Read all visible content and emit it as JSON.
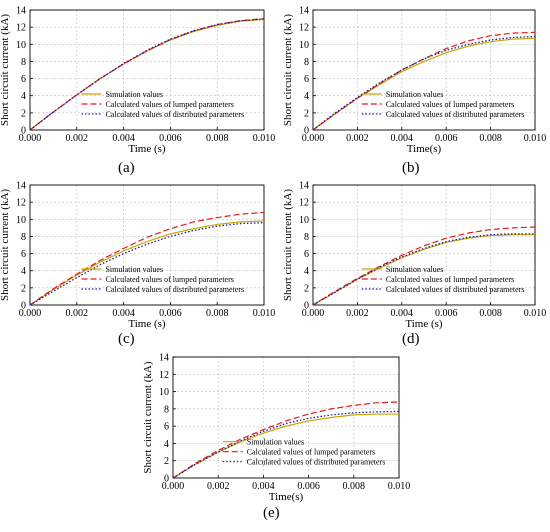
{
  "chart_data": [
    {
      "type": "line",
      "panel_label": "(a)",
      "xlabel": "Time (s)",
      "ylabel": "Short circuit current (kA)",
      "xlim": [
        0,
        0.01
      ],
      "ylim": [
        0,
        14
      ],
      "xticks": [
        "0.000",
        "0.002",
        "0.004",
        "0.006",
        "0.008",
        "0.010"
      ],
      "yticks": [
        "0",
        "2",
        "4",
        "6",
        "8",
        "10",
        "12",
        "14"
      ],
      "grid": true,
      "legend_position": "lower-right",
      "x": [
        0,
        0.001,
        0.002,
        0.003,
        0.004,
        0.005,
        0.006,
        0.007,
        0.008,
        0.009,
        0.01
      ],
      "series": [
        {
          "name": "Simulation values",
          "style": "solid",
          "color": "#c8a800",
          "values": [
            0,
            2.1,
            4.1,
            6.0,
            7.7,
            9.2,
            10.5,
            11.5,
            12.2,
            12.7,
            12.9
          ]
        },
        {
          "name": "Calculated values of lumped parameters",
          "style": "dashed",
          "color": "#e8191a",
          "values": [
            0,
            2.1,
            4.1,
            6.0,
            7.7,
            9.25,
            10.55,
            11.55,
            12.3,
            12.75,
            13.0
          ]
        },
        {
          "name": "Calculated values of distributed parameters",
          "style": "dotted",
          "color": "#1a1aa0",
          "values": [
            0,
            2.1,
            4.1,
            6.0,
            7.75,
            9.3,
            10.6,
            11.6,
            12.3,
            12.75,
            12.95
          ]
        }
      ]
    },
    {
      "type": "line",
      "panel_label": "(b)",
      "xlabel": "Time(s)",
      "ylabel": "Short circuit current (kA)",
      "xlim": [
        0,
        0.01
      ],
      "ylim": [
        0,
        14
      ],
      "xticks": [
        "0.000",
        "0.002",
        "0.004",
        "0.006",
        "0.008",
        "0.010"
      ],
      "yticks": [
        "0",
        "2",
        "4",
        "6",
        "8",
        "10",
        "12",
        "14"
      ],
      "grid": true,
      "legend_position": "lower-right",
      "x": [
        0,
        0.001,
        0.002,
        0.003,
        0.004,
        0.005,
        0.006,
        0.007,
        0.008,
        0.009,
        0.01
      ],
      "series": [
        {
          "name": "Simulation values",
          "style": "solid",
          "color": "#c8a800",
          "values": [
            0,
            1.9,
            3.7,
            5.3,
            6.8,
            8.0,
            9.0,
            9.8,
            10.3,
            10.6,
            10.7
          ]
        },
        {
          "name": "Calculated values of lumped parameters",
          "style": "dashed",
          "color": "#e8191a",
          "values": [
            0,
            1.9,
            3.7,
            5.4,
            7.0,
            8.3,
            9.5,
            10.4,
            11.0,
            11.3,
            11.4
          ]
        },
        {
          "name": "Calculated values of distributed parameters",
          "style": "dotted",
          "color": "#1a1aa0",
          "values": [
            0,
            2.0,
            3.8,
            5.5,
            7.0,
            8.3,
            9.3,
            10.0,
            10.5,
            10.8,
            10.9
          ]
        }
      ]
    },
    {
      "type": "line",
      "panel_label": "(c)",
      "xlabel": "Time (s)",
      "ylabel": "Short circuit current (kA)",
      "xlim": [
        0,
        0.01
      ],
      "ylim": [
        0,
        14
      ],
      "xticks": [
        "0.000",
        "0.002",
        "0.004",
        "0.006",
        "0.008",
        "0.010"
      ],
      "yticks": [
        "0",
        "2",
        "4",
        "6",
        "8",
        "10",
        "12",
        "14"
      ],
      "grid": true,
      "legend_position": "lower-right",
      "x": [
        0,
        0.001,
        0.002,
        0.003,
        0.004,
        0.005,
        0.006,
        0.007,
        0.008,
        0.009,
        0.01
      ],
      "series": [
        {
          "name": "Simulation values",
          "style": "solid",
          "color": "#c8a800",
          "values": [
            0,
            1.8,
            3.5,
            5.0,
            6.3,
            7.4,
            8.3,
            8.9,
            9.4,
            9.7,
            9.8
          ]
        },
        {
          "name": "Calculated values of lumped parameters",
          "style": "dashed",
          "color": "#e8191a",
          "values": [
            0,
            1.9,
            3.6,
            5.2,
            6.6,
            7.9,
            8.9,
            9.7,
            10.2,
            10.6,
            10.8
          ]
        },
        {
          "name": "Calculated values of distributed parameters",
          "style": "dotted",
          "color": "#1a1aa0",
          "values": [
            0,
            1.6,
            3.2,
            4.7,
            6.0,
            7.1,
            8.0,
            8.7,
            9.2,
            9.5,
            9.6
          ]
        }
      ]
    },
    {
      "type": "line",
      "panel_label": "(d)",
      "xlabel": "Time (s)",
      "ylabel": "Short circuit current (kA)",
      "xlim": [
        0,
        0.01
      ],
      "ylim": [
        0,
        14
      ],
      "xticks": [
        "0.000",
        "0.002",
        "0.004",
        "0.006",
        "0.008",
        "0.010"
      ],
      "yticks": [
        "0",
        "2",
        "4",
        "6",
        "8",
        "10",
        "12",
        "14"
      ],
      "grid": true,
      "legend_position": "lower-right",
      "x": [
        0,
        0.001,
        0.002,
        0.003,
        0.004,
        0.005,
        0.006,
        0.007,
        0.008,
        0.009,
        0.01
      ],
      "series": [
        {
          "name": "Simulation values",
          "style": "solid",
          "color": "#c8a800",
          "values": [
            0,
            1.5,
            3.0,
            4.3,
            5.5,
            6.5,
            7.3,
            7.8,
            8.1,
            8.2,
            8.2
          ]
        },
        {
          "name": "Calculated values of lumped parameters",
          "style": "dashed",
          "color": "#e8191a",
          "values": [
            0,
            1.6,
            3.1,
            4.5,
            5.8,
            6.9,
            7.8,
            8.4,
            8.8,
            9.0,
            9.1
          ]
        },
        {
          "name": "Calculated values of distributed parameters",
          "style": "dotted",
          "color": "#1a1aa0",
          "values": [
            0,
            1.5,
            3.0,
            4.4,
            5.6,
            6.6,
            7.4,
            7.9,
            8.2,
            8.3,
            8.3
          ]
        }
      ]
    },
    {
      "type": "line",
      "panel_label": "(e)",
      "xlabel": "Time(s)",
      "ylabel": "Short circuit current (kA)",
      "xlim": [
        0,
        0.01
      ],
      "ylim": [
        0,
        14
      ],
      "xticks": [
        "0.000",
        "0.002",
        "0.004",
        "0.006",
        "0.008",
        "0.010"
      ],
      "yticks": [
        "0",
        "2",
        "4",
        "6",
        "8",
        "10",
        "12",
        "14"
      ],
      "grid": true,
      "legend_position": "lower-right",
      "x": [
        0,
        0.001,
        0.002,
        0.003,
        0.004,
        0.005,
        0.006,
        0.007,
        0.008,
        0.009,
        0.01
      ],
      "series": [
        {
          "name": "Simulation values",
          "style": "solid",
          "color": "#c8a800",
          "values": [
            0,
            1.6,
            3.0,
            4.2,
            5.2,
            6.0,
            6.6,
            7.0,
            7.3,
            7.4,
            7.4
          ]
        },
        {
          "name": "Calculated values of lumped parameters",
          "style": "dashed",
          "color": "#e8191a",
          "values": [
            0,
            1.7,
            3.2,
            4.5,
            5.6,
            6.6,
            7.4,
            8.0,
            8.4,
            8.7,
            8.8
          ]
        },
        {
          "name": "Calculated values of distributed parameters",
          "style": "dotted",
          "color": "#1a1aa0",
          "values": [
            0,
            1.6,
            3.0,
            4.3,
            5.4,
            6.3,
            6.9,
            7.3,
            7.55,
            7.65,
            7.7
          ]
        }
      ]
    }
  ]
}
